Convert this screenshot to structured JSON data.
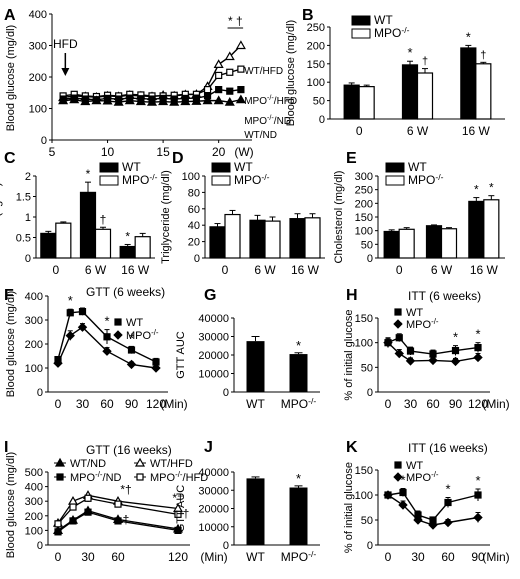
{
  "chart_data": [
    {
      "panel": "A",
      "type": "line",
      "ylabel": "Blood glucose (mg/dl)",
      "x_ticks": [
        5,
        10,
        15,
        20
      ],
      "x_unit": "(W)",
      "ylim": [
        0,
        400
      ],
      "y_ticks": [
        0,
        100,
        200,
        300,
        400
      ],
      "xlim": [
        5,
        23
      ],
      "annotation_arrow": "HFD",
      "significance": "* †",
      "series": [
        {
          "name": "WT/HFD",
          "marker": "open-triangle",
          "x": [
            6,
            7,
            8,
            9,
            10,
            11,
            12,
            13,
            14,
            15,
            16,
            17,
            18,
            19,
            20,
            21,
            22
          ],
          "values": [
            135,
            140,
            138,
            136,
            140,
            138,
            142,
            140,
            138,
            142,
            140,
            144,
            145,
            170,
            240,
            265,
            300
          ]
        },
        {
          "name": "MPO-/-/HFD",
          "marker": "open-square",
          "x": [
            6,
            7,
            8,
            9,
            10,
            11,
            12,
            13,
            14,
            15,
            16,
            17,
            18,
            19,
            20,
            21,
            22
          ],
          "values": [
            140,
            145,
            140,
            138,
            142,
            140,
            145,
            143,
            140,
            140,
            142,
            145,
            145,
            160,
            205,
            215,
            225
          ]
        },
        {
          "name": "MPO-/-/ND",
          "marker": "filled-square",
          "x": [
            6,
            7,
            8,
            9,
            10,
            11,
            12,
            13,
            14,
            15,
            16,
            17,
            18,
            19,
            20,
            21,
            22
          ],
          "values": [
            130,
            133,
            130,
            128,
            132,
            130,
            133,
            131,
            130,
            132,
            130,
            132,
            133,
            140,
            160,
            155,
            160
          ]
        },
        {
          "name": "WT/ND",
          "marker": "filled-triangle",
          "x": [
            6,
            7,
            8,
            9,
            10,
            11,
            12,
            13,
            14,
            15,
            16,
            17,
            18,
            19,
            20,
            21,
            22
          ],
          "values": [
            125,
            128,
            122,
            125,
            124,
            120,
            125,
            122,
            120,
            122,
            120,
            122,
            123,
            125,
            125,
            120,
            128
          ]
        }
      ]
    },
    {
      "panel": "B",
      "type": "bar",
      "ylabel": "Blood glucose (mg/dl)",
      "categories": [
        "0",
        "6 W",
        "16 W"
      ],
      "ylim": [
        0,
        250
      ],
      "y_ticks": [
        0,
        50,
        100,
        150,
        200,
        250
      ],
      "series": [
        {
          "name": "WT",
          "values": [
            92,
            147,
            193
          ],
          "errors": [
            6,
            10,
            7
          ]
        },
        {
          "name": "MPO-/-",
          "values": [
            88,
            125,
            150
          ],
          "errors": [
            4,
            12,
            4
          ]
        }
      ],
      "annotations": [
        [
          "*",
          "†"
        ],
        [
          "*",
          "†"
        ]
      ]
    },
    {
      "panel": "C",
      "type": "bar",
      "ylabel": "Insulin (ng/ml)",
      "categories": [
        "0",
        "6 W",
        "16 W"
      ],
      "ylim": [
        0,
        2
      ],
      "y_ticks": [
        0,
        0.5,
        1,
        1.5,
        2
      ],
      "series": [
        {
          "name": "WT",
          "values": [
            0.6,
            1.6,
            0.28
          ],
          "errors": [
            0.05,
            0.25,
            0.05
          ]
        },
        {
          "name": "MPO-/-",
          "values": [
            0.85,
            0.7,
            0.52
          ],
          "errors": [
            0.03,
            0.05,
            0.08
          ]
        }
      ],
      "marks": {
        "wt_6w": "*",
        "mpo_6w": "†",
        "wt_16w": "*"
      }
    },
    {
      "panel": "D",
      "type": "bar",
      "ylabel": "Triglyceride (mg/dl)",
      "categories": [
        "0",
        "6 W",
        "16 W"
      ],
      "ylim": [
        0,
        100
      ],
      "y_ticks": [
        0,
        20,
        40,
        60,
        80,
        100
      ],
      "series": [
        {
          "name": "WT",
          "values": [
            38,
            46,
            48
          ],
          "errors": [
            4,
            6,
            6
          ]
        },
        {
          "name": "MPO-/-",
          "values": [
            53,
            45,
            49
          ],
          "errors": [
            5,
            5,
            5
          ]
        }
      ]
    },
    {
      "panel": "E",
      "type": "bar",
      "ylabel": "Cholesterol (mg/dl)",
      "categories": [
        "0",
        "6 W",
        "16 W"
      ],
      "ylim": [
        0,
        300
      ],
      "y_ticks": [
        0,
        50,
        100,
        150,
        200,
        250,
        300
      ],
      "series": [
        {
          "name": "WT",
          "values": [
            97,
            118,
            207
          ],
          "errors": [
            6,
            3,
            14
          ]
        },
        {
          "name": "MPO-/-",
          "values": [
            105,
            107,
            213
          ],
          "errors": [
            6,
            4,
            15
          ]
        }
      ],
      "marks": {
        "wt_16w": "*",
        "mpo_16w": "*"
      }
    },
    {
      "panel": "F",
      "type": "line",
      "title": "GTT (6 weeks)",
      "ylabel": "Blood glucose (mg/dl)",
      "x": [
        0,
        15,
        30,
        60,
        90,
        120
      ],
      "x_unit": "(Min)",
      "ylim": [
        0,
        400
      ],
      "y_ticks": [
        0,
        100,
        200,
        300,
        400
      ],
      "series": [
        {
          "name": "WT",
          "marker": "filled-square",
          "values": [
            135,
            330,
            335,
            230,
            175,
            125
          ],
          "errors": [
            10,
            15,
            15,
            30,
            15,
            15
          ]
        },
        {
          "name": "MPO-/-",
          "marker": "filled-diamond",
          "values": [
            120,
            235,
            270,
            170,
            115,
            100
          ],
          "errors": [
            10,
            20,
            15,
            15,
            10,
            15
          ]
        }
      ],
      "marks": [
        "",
        "*",
        "",
        "*",
        "*",
        ""
      ]
    },
    {
      "panel": "G",
      "type": "bar",
      "ylabel": "GTT AUC",
      "categories": [
        "WT",
        "MPO-/-"
      ],
      "ylim": [
        0,
        40000
      ],
      "y_ticks": [
        0,
        10000,
        20000,
        30000,
        40000
      ],
      "values": [
        27500,
        20500
      ],
      "errors": [
        2500,
        700
      ],
      "marks": [
        "",
        "*"
      ]
    },
    {
      "panel": "H",
      "type": "line",
      "title": "ITT (6 weeks)",
      "ylabel": "% of initial glucose",
      "x": [
        0,
        15,
        30,
        60,
        90,
        120
      ],
      "x_unit": "(Min)",
      "ylim": [
        0,
        150
      ],
      "y_ticks": [
        0,
        50,
        100,
        150
      ],
      "series": [
        {
          "name": "WT",
          "marker": "filled-square",
          "values": [
            100,
            110,
            83,
            77,
            84,
            90
          ],
          "errors": [
            10,
            8,
            8,
            8,
            10,
            10
          ]
        },
        {
          "name": "MPO-/-",
          "marker": "filled-diamond",
          "values": [
            100,
            78,
            63,
            64,
            62,
            70
          ],
          "errors": [
            8,
            8,
            6,
            5,
            6,
            8
          ]
        }
      ],
      "marks": [
        "",
        "*",
        "",
        "",
        "*",
        "*"
      ]
    },
    {
      "panel": "I",
      "type": "line",
      "title": "GTT (16 weeks)",
      "ylabel": "Blood glucose (mg/dl)",
      "x": [
        0,
        15,
        30,
        60,
        120
      ],
      "x_unit": "(Min)",
      "ylim": [
        0,
        500
      ],
      "y_ticks": [
        0,
        100,
        200,
        300,
        400,
        500
      ],
      "legend_labels": [
        "WT/ND",
        "WT/HFD",
        "MPO-/-/ND",
        "MPO-/-/HFD"
      ],
      "series": [
        {
          "name": "WT/ND",
          "marker": "filled-triangle",
          "values": [
            100,
            170,
            235,
            175,
            110
          ],
          "errors": [
            8,
            15,
            20,
            15,
            10
          ]
        },
        {
          "name": "WT/HFD",
          "marker": "open-triangle",
          "values": [
            150,
            300,
            340,
            300,
            250
          ],
          "errors": [
            10,
            20,
            25,
            25,
            20
          ]
        },
        {
          "name": "MPO-/-/ND",
          "marker": "filled-square",
          "values": [
            90,
            165,
            225,
            165,
            100
          ],
          "errors": [
            8,
            15,
            20,
            15,
            10
          ]
        },
        {
          "name": "MPO-/-/HFD",
          "marker": "open-square",
          "values": [
            145,
            260,
            320,
            280,
            210
          ],
          "errors": [
            10,
            20,
            25,
            20,
            20
          ]
        }
      ],
      "marks": {
        "60": "*†",
        "60_lower": "†",
        "120": "*†",
        "120_lower": "†"
      }
    },
    {
      "panel": "J",
      "type": "bar",
      "ylabel": "GTT AUC",
      "categories": [
        "WT",
        "MPO-/-"
      ],
      "ylim": [
        0,
        40000
      ],
      "y_ticks": [
        0,
        10000,
        20000,
        30000,
        40000
      ],
      "values": [
        36500,
        31500
      ],
      "errors": [
        800,
        900
      ],
      "marks": [
        "",
        "*"
      ]
    },
    {
      "panel": "K",
      "type": "line",
      "title": "ITT (16 weeks)",
      "ylabel": "% of initial glucose",
      "x": [
        0,
        15,
        30,
        45,
        60,
        90
      ],
      "x_unit": "(Min)",
      "ylim": [
        0,
        150
      ],
      "y_ticks": [
        0,
        50,
        100,
        150
      ],
      "series": [
        {
          "name": "WT",
          "marker": "filled-square",
          "values": [
            100,
            105,
            60,
            50,
            85,
            100
          ],
          "errors": [
            6,
            8,
            8,
            6,
            10,
            12
          ]
        },
        {
          "name": "MPO-/-",
          "marker": "filled-diamond",
          "values": [
            100,
            80,
            50,
            40,
            45,
            55
          ],
          "errors": [
            5,
            8,
            6,
            5,
            6,
            10
          ]
        }
      ],
      "marks": [
        "",
        "*",
        "",
        "",
        "*",
        "*"
      ]
    }
  ]
}
